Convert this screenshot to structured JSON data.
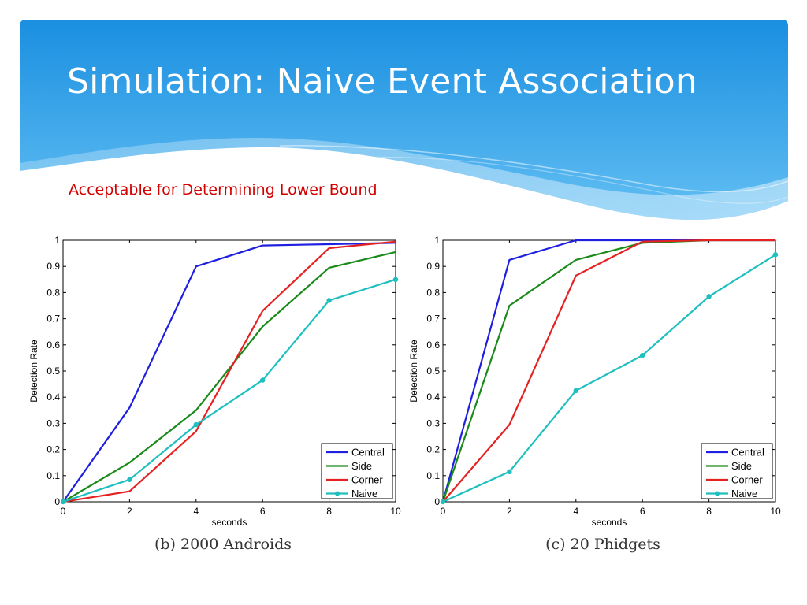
{
  "slide": {
    "title": "Simulation: Naive Event Association",
    "subtitle": "Acceptable for Determining Lower Bound"
  },
  "colors": {
    "header_top": "#1a8fe0",
    "header_bottom": "#6cc3f5",
    "title_text": "#ffffff",
    "subtitle_text": "#d40000",
    "Central": "#1f1fe0",
    "Side": "#1a8a1a",
    "Corner": "#e52222",
    "Naive": "#1fbfbf"
  },
  "chart_data": [
    {
      "type": "line",
      "caption": "(b) 2000 Androids",
      "xlabel": "seconds",
      "ylabel": "Detection Rate",
      "xlim": [
        0,
        10
      ],
      "ylim": [
        0,
        1
      ],
      "xticks": [
        0,
        2,
        4,
        6,
        8,
        10
      ],
      "yticks": [
        0,
        0.1,
        0.2,
        0.3,
        0.4,
        0.5,
        0.6,
        0.7,
        0.8,
        0.9,
        1
      ],
      "ytick_labels": [
        "0",
        "0.1",
        "0.2",
        "0.3",
        "0.4",
        "0.5",
        "0.6",
        "0.7",
        "0.8",
        "0.9",
        "1"
      ],
      "legend_position": "bottom-right",
      "x": [
        0,
        2,
        4,
        6,
        8,
        10
      ],
      "series": [
        {
          "name": "Central",
          "values": [
            0,
            0.36,
            0.9,
            0.98,
            0.985,
            0.99
          ],
          "markers": false
        },
        {
          "name": "Side",
          "values": [
            0,
            0.15,
            0.35,
            0.67,
            0.895,
            0.955
          ],
          "markers": false
        },
        {
          "name": "Corner",
          "values": [
            0,
            0.04,
            0.27,
            0.73,
            0.97,
            0.995
          ],
          "markers": false
        },
        {
          "name": "Naive",
          "values": [
            0,
            0.085,
            0.295,
            0.465,
            0.77,
            0.85
          ],
          "markers": true
        }
      ]
    },
    {
      "type": "line",
      "caption": "(c) 20 Phidgets",
      "xlabel": "seconds",
      "ylabel": "Detection Rate",
      "xlim": [
        0,
        10
      ],
      "ylim": [
        0,
        1
      ],
      "xticks": [
        0,
        2,
        4,
        6,
        8,
        10
      ],
      "yticks": [
        0,
        0.1,
        0.2,
        0.3,
        0.4,
        0.5,
        0.6,
        0.7,
        0.8,
        0.9,
        1
      ],
      "ytick_labels": [
        "0",
        "0.1",
        "0.2",
        "0.3",
        "0.4",
        "0.5",
        "0.6",
        "0.7",
        "0.8",
        "0.9",
        "1"
      ],
      "legend_position": "bottom-right",
      "x": [
        0,
        2,
        4,
        6,
        8,
        10
      ],
      "series": [
        {
          "name": "Central",
          "values": [
            0,
            0.925,
            1.0,
            1.0,
            1.0,
            1.0
          ],
          "markers": false
        },
        {
          "name": "Side",
          "values": [
            0,
            0.75,
            0.925,
            0.99,
            1.0,
            1.0
          ],
          "markers": false
        },
        {
          "name": "Corner",
          "values": [
            0,
            0.295,
            0.865,
            0.995,
            1.0,
            1.0
          ],
          "markers": false
        },
        {
          "name": "Naive",
          "values": [
            0,
            0.115,
            0.425,
            0.56,
            0.785,
            0.945
          ],
          "markers": true
        }
      ]
    }
  ]
}
